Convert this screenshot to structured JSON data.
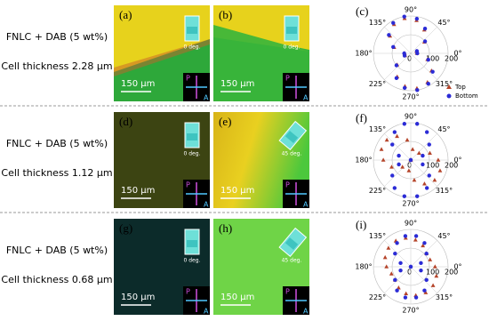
{
  "rows": [
    {
      "sample": "FNLC + DAB (5 wt%)",
      "thickness": "Cell thickness 2.28 μm",
      "panels": [
        {
          "label": "(a)",
          "angle": "0 deg.",
          "scale": "150 μm",
          "polarizer": "P",
          "analyzer": "A"
        },
        {
          "label": "(b)",
          "angle": "0 deg.",
          "scale": "150 μm",
          "polarizer": "P",
          "analyzer": "A"
        }
      ],
      "polar": {
        "label": "(c)",
        "series": [
          {
            "name": "Top",
            "values": [
              33,
              33,
              95,
              145,
              179,
              190,
              179,
              145,
              95,
              33,
              33,
              95,
              145,
              179,
              190,
              179,
              145,
              95
            ]
          },
          {
            "name": "Bottom",
            "values": [
              35,
              35,
              100,
              153,
              188,
              200,
              188,
              153,
              100,
              35,
              35,
              100,
              153,
              188,
              200,
              188,
              153,
              100
            ]
          }
        ]
      }
    },
    {
      "sample": "FNLC + DAB (5 wt%)",
      "thickness": "Cell thickness 1.12 μm",
      "panels": [
        {
          "label": "(d)",
          "angle": "0 deg.",
          "scale": "150 μm",
          "polarizer": "P",
          "analyzer": "A"
        },
        {
          "label": "(e)",
          "angle": "45 deg.",
          "scale": "150 μm",
          "polarizer": "P",
          "analyzer": "A"
        }
      ],
      "polar": {
        "label": "(f)",
        "series": [
          {
            "name": "Top",
            "values": [
              147,
              109,
              58,
              0,
              58,
              109,
              147,
              167,
              167,
              147,
              109,
              58,
              0,
              58,
              109,
              147,
              167,
              167
            ]
          },
          {
            "name": "Bottom",
            "values": [
              0,
              68,
              129,
              173,
              197,
              197,
              173,
              129,
              68,
              0,
              68,
              129,
              173,
              197,
              197,
              173,
              129,
              68
            ]
          }
        ]
      }
    },
    {
      "sample": "FNLC + DAB (5 wt%)",
      "thickness": "Cell thickness 0.68 μm",
      "panels": [
        {
          "label": "(g)",
          "angle": "0 deg.",
          "scale": "150 μm",
          "polarizer": "P",
          "analyzer": "A"
        },
        {
          "label": "(h)",
          "angle": "45 deg.",
          "scale": "150 μm",
          "polarizer": "P",
          "analyzer": "A"
        }
      ],
      "polar": {
        "label": "(i)",
        "series": [
          {
            "name": "Top",
            "values": [
              130,
              110,
              110,
              130,
              146,
              156,
              160,
              156,
              146,
              130,
              110,
              110,
              130,
              146,
              156,
              160,
              156,
              146
            ]
          },
          {
            "name": "Bottom",
            "values": [
              0,
              58,
              110,
              147,
              167,
              167,
              147,
              110,
              58,
              0,
              58,
              110,
              147,
              167,
              167,
              147,
              110,
              58
            ]
          }
        ]
      }
    }
  ],
  "polar_axes": {
    "angles": [
      0,
      20,
      40,
      60,
      80,
      100,
      120,
      140,
      160,
      180,
      200,
      220,
      240,
      260,
      280,
      300,
      320,
      340
    ],
    "angle_labels": [
      {
        "value": 90,
        "label": "90°"
      },
      {
        "value": 45,
        "label": "45°"
      },
      {
        "value": 0,
        "label": "0°"
      },
      {
        "value": 315,
        "label": "315°"
      },
      {
        "value": 270,
        "label": "270°"
      },
      {
        "value": 225,
        "label": "225°"
      },
      {
        "value": 180,
        "label": "180°"
      },
      {
        "value": 135,
        "label": "135°"
      }
    ],
    "rlim": [
      0,
      200
    ],
    "rticks": [
      0,
      100,
      200
    ]
  },
  "legend": [
    {
      "name": "Top",
      "color": "#b5442a"
    },
    {
      "name": "Bottom",
      "color": "#2b2bd6"
    }
  ]
}
